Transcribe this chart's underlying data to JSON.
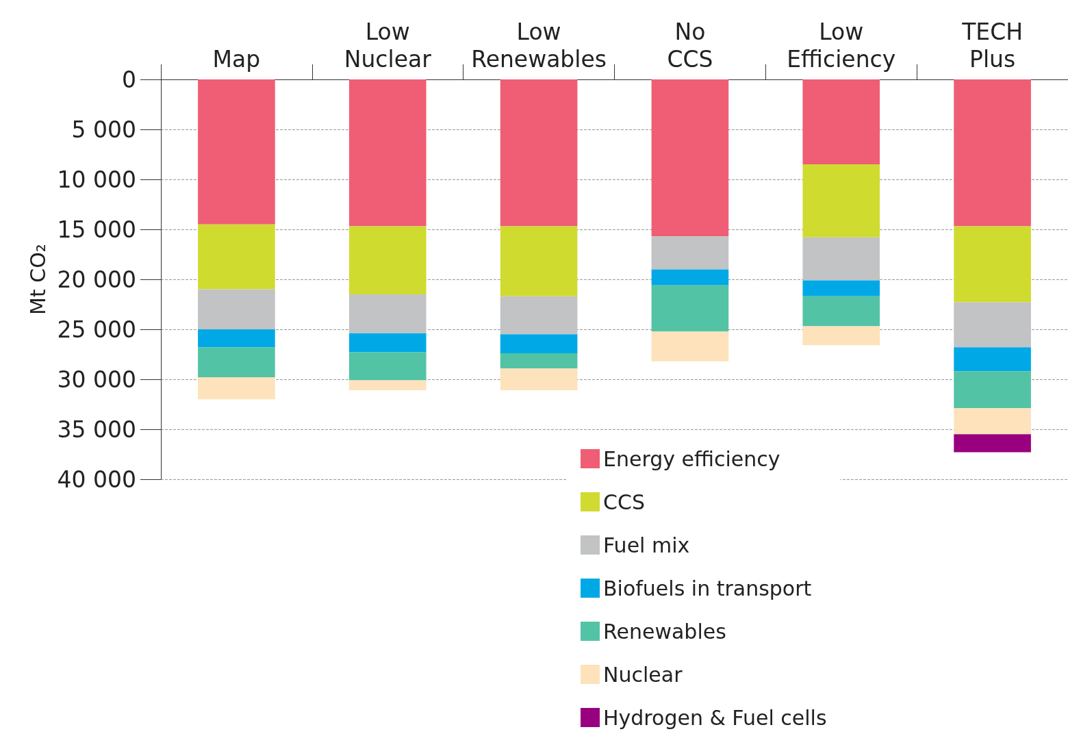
{
  "chart_data": {
    "type": "bar",
    "stacked": true,
    "ylabel": "Mt CO₂",
    "categories": [
      "Map",
      "Low Nuclear",
      "Low Renewables",
      "No CCS",
      "Low Efficiency",
      "TECH Plus"
    ],
    "series": [
      {
        "name": "Energy efficiency",
        "color": "#ef5e74",
        "values": [
          14500,
          14700,
          14700,
          15700,
          8500,
          14700
        ]
      },
      {
        "name": "CCS",
        "color": "#d0db30",
        "values": [
          6500,
          6800,
          7000,
          null,
          7300,
          7600
        ]
      },
      {
        "name": "Fuel mix",
        "color": "#c2c3c5",
        "values": [
          4000,
          3900,
          3800,
          3300,
          4300,
          4500
        ]
      },
      {
        "name": "Biofuels in transport",
        "color": "#00a9e6",
        "values": [
          1800,
          1900,
          1900,
          1600,
          1600,
          2400
        ]
      },
      {
        "name": "Renewables",
        "color": "#53c3a5",
        "values": [
          3000,
          2800,
          1500,
          4600,
          3000,
          3700
        ]
      },
      {
        "name": "Nuclear",
        "color": "#fde2bc",
        "values": [
          2200,
          1000,
          2200,
          3000,
          1900,
          2600
        ]
      },
      {
        "name": "Hydrogen & Fuel cells",
        "color": "#98007f",
        "values": [
          null,
          null,
          null,
          null,
          null,
          1800
        ]
      }
    ],
    "ylim": [
      40000,
      0
    ],
    "yticks": [
      0,
      {
        "value": 5000,
        "label": "5 000"
      },
      {
        "value": 10000,
        "label": "10 000"
      },
      {
        "value": 15000,
        "label": "15 000"
      },
      {
        "value": 20000,
        "label": "20 000"
      },
      {
        "value": 25000,
        "label": "25 000"
      },
      {
        "value": 30000,
        "label": "30 000"
      },
      {
        "value": 35000,
        "label": "35 000"
      },
      {
        "value": 40000,
        "label": "40 000"
      }
    ],
    "grid": "y",
    "legend": "bottom"
  }
}
